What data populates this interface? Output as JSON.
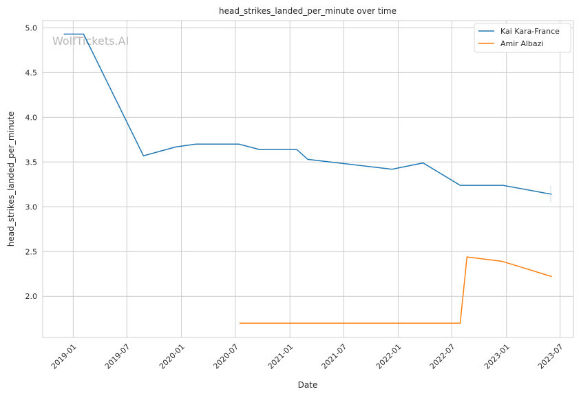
{
  "chart_data": {
    "type": "line",
    "title": "head_strikes_landed_per_minute over time",
    "xlabel": "Date",
    "ylabel": "head_strikes_landed_per_minute",
    "watermark": "WolfTickets.AI",
    "xlim": [
      "2018-09-20",
      "2023-08-15"
    ],
    "ylim": [
      1.54,
      5.08
    ],
    "grid": true,
    "legend_position": "top-right",
    "x_ticks": [
      "2019-01",
      "2019-07",
      "2020-01",
      "2020-07",
      "2021-01",
      "2021-07",
      "2022-01",
      "2022-07",
      "2023-01",
      "2023-07"
    ],
    "y_ticks": [
      2.0,
      2.5,
      3.0,
      3.5,
      4.0,
      4.5,
      5.0
    ],
    "y_tick_labels": [
      "2.0",
      "2.5",
      "3.0",
      "3.5",
      "4.0",
      "4.5",
      "5.0"
    ],
    "series": [
      {
        "name": "Kai Kara-France",
        "color": "#1f77b4",
        "x": [
          "2018-11-30",
          "2019-02-05",
          "2019-08-26",
          "2019-12-14",
          "2020-02-19",
          "2020-07-13",
          "2020-09-20",
          "2021-01-24",
          "2021-03-02",
          "2021-12-11",
          "2022-03-26",
          "2022-07-29",
          "2022-12-20",
          "2023-06-03"
        ],
        "y": [
          4.93,
          4.93,
          3.57,
          3.67,
          3.7,
          3.7,
          3.64,
          3.64,
          3.53,
          3.42,
          3.49,
          3.24,
          3.24,
          3.14
        ]
      },
      {
        "name": "Amir Albazi",
        "color": "#ff7f0e",
        "x": [
          "2020-07-15",
          "2022-07-29",
          "2022-08-21",
          "2022-12-18",
          "2023-06-03"
        ],
        "y": [
          1.7,
          1.7,
          2.44,
          2.39,
          2.22
        ]
      }
    ]
  }
}
